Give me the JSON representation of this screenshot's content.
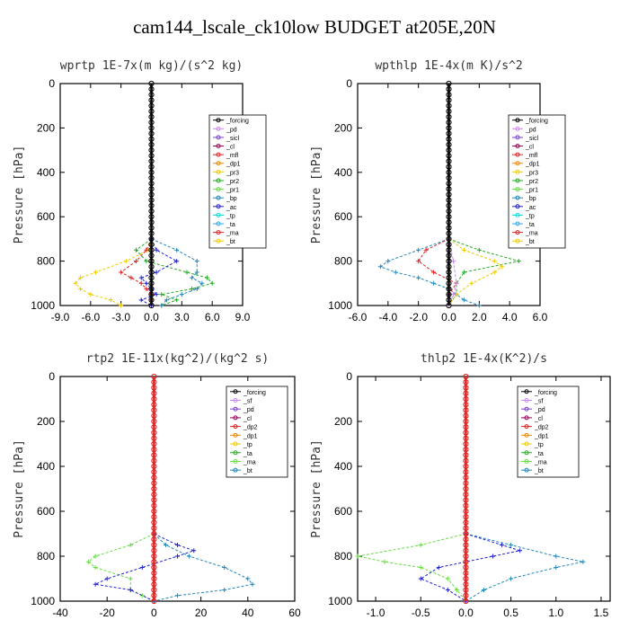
{
  "main_title": "cam144_lscale_ck10low  BUDGET at205E,20N",
  "colors": {
    "black": "#000000",
    "violet": "#cc88ee",
    "purple": "#7744cc",
    "darkmagenta": "#990055",
    "red": "#dd2222",
    "orange": "#ee8800",
    "yellow": "#eecc00",
    "green": "#22aa22",
    "lightgreen": "#66dd44",
    "steelblue": "#2288bb",
    "blue": "#2222cc",
    "cyan": "#00dddd",
    "skyblue": "#33aaee"
  },
  "chart_data": [
    {
      "type": "line",
      "title": "wprtp  1E-7x(m kg)/(s^2 kg)",
      "ylabel": "Pressure [hPa]",
      "xlim": [
        -9,
        9
      ],
      "ylim": [
        1000,
        0
      ],
      "xticks": [
        "-9.0",
        "-6.0",
        "-3.0",
        "0.0",
        "3.0",
        "6.0",
        "9.0"
      ],
      "yticks": [
        "0",
        "200",
        "400",
        "600",
        "800",
        "1000"
      ],
      "legend": [
        "_forcing",
        "_pd",
        "_sicl",
        "_cl",
        "_mfl",
        "_dp1",
        "_pr3",
        "_pr2",
        "_pr1",
        "_bp",
        "_ac",
        "_tp",
        "_ta",
        "_ma",
        "_bt"
      ],
      "series": [
        {
          "name": "_pr1",
          "color": "#eecc00",
          "pressure": [
            700,
            750,
            800,
            850,
            875,
            900,
            925,
            950,
            975,
            1000
          ],
          "values": [
            0,
            -0.3,
            -2.5,
            -5.5,
            -7.0,
            -7.5,
            -7.0,
            -6.0,
            -4.0,
            -3.0
          ]
        },
        {
          "name": "_ac",
          "color": "#22aa22",
          "pressure": [
            700,
            750,
            800,
            850,
            875,
            900,
            925,
            950,
            975,
            1000
          ],
          "values": [
            0,
            -1.5,
            -0.5,
            3.5,
            5.5,
            6.0,
            4.0,
            1.0,
            2.5,
            1.0
          ]
        },
        {
          "name": "_tp",
          "color": "#2288bb",
          "pressure": [
            700,
            750,
            800,
            850,
            875,
            900,
            925,
            950,
            975,
            1000
          ],
          "values": [
            0,
            2.5,
            4.5,
            4.5,
            4.0,
            5.0,
            4.5,
            3.0,
            1.5,
            1.0
          ]
        },
        {
          "name": "_dp1",
          "color": "#dd2222",
          "pressure": [
            700,
            750,
            800,
            850,
            875,
            900,
            925,
            950,
            975,
            1000
          ],
          "values": [
            0,
            -0.5,
            -1.5,
            -3.0,
            -2.0,
            -1.0,
            -0.5,
            0,
            0,
            0
          ]
        },
        {
          "name": "_ta",
          "color": "#2222cc",
          "pressure": [
            700,
            750,
            800,
            850,
            875,
            900,
            925,
            950,
            975,
            1000
          ],
          "values": [
            0,
            0.5,
            2.5,
            0.5,
            -1.0,
            -0.5,
            0,
            0.5,
            -1.0,
            0
          ]
        },
        {
          "name": "_forcing",
          "color": "#000000",
          "pressure": [
            0,
            1000
          ],
          "values": [
            0,
            0
          ]
        }
      ]
    },
    {
      "type": "line",
      "title": "wpthlp  1E-4x(m K)/s^2",
      "ylabel": "Pressure [hPa]",
      "xlim": [
        -6,
        6
      ],
      "ylim": [
        1000,
        0
      ],
      "xticks": [
        "-6.0",
        "-4.0",
        "-2.0",
        "0.0",
        "2.0",
        "4.0",
        "6.0"
      ],
      "yticks": [
        "0",
        "200",
        "400",
        "600",
        "800",
        "1000"
      ],
      "legend": [
        "_forcing",
        "_pd",
        "_sicl",
        "_cl",
        "_mfl",
        "_dp1",
        "_pr3",
        "_pr2",
        "_pr1",
        "_bp",
        "_ac",
        "_tp",
        "_ta",
        "_ma",
        "_bt"
      ],
      "series": [
        {
          "name": "_tp",
          "color": "#2288bb",
          "pressure": [
            700,
            750,
            800,
            825,
            850,
            875,
            900,
            925,
            950,
            975,
            1000
          ],
          "values": [
            0,
            -2.0,
            -4.0,
            -4.5,
            -3.5,
            -2.0,
            -1.0,
            0,
            0.5,
            1.0,
            2.0
          ]
        },
        {
          "name": "_ac",
          "color": "#22aa22",
          "pressure": [
            700,
            750,
            800,
            850,
            900,
            950,
            1000
          ],
          "values": [
            0,
            2.0,
            4.6,
            1.0,
            0.5,
            0.5,
            0
          ]
        },
        {
          "name": "_pr1",
          "color": "#eecc00",
          "pressure": [
            700,
            750,
            800,
            825,
            850,
            900,
            950,
            1000
          ],
          "values": [
            0,
            1.0,
            3.0,
            3.5,
            3.0,
            1.5,
            0.5,
            0
          ]
        },
        {
          "name": "_dp1",
          "color": "#dd2222",
          "pressure": [
            700,
            750,
            800,
            850,
            900,
            950,
            1000
          ],
          "values": [
            0,
            -1.5,
            -2.0,
            -1.0,
            0.5,
            0,
            0
          ]
        },
        {
          "name": "_pd",
          "color": "#cc88ee",
          "pressure": [
            700,
            800,
            900,
            950,
            1000
          ],
          "values": [
            0,
            0.3,
            0.5,
            0.3,
            0
          ]
        },
        {
          "name": "_forcing",
          "color": "#000000",
          "pressure": [
            0,
            1000
          ],
          "values": [
            0,
            0
          ]
        }
      ]
    },
    {
      "type": "line",
      "title": "rtp2  1E-11x(kg^2)/(kg^2 s)",
      "ylabel": "Pressure [hPa]",
      "xlim": [
        -40,
        60
      ],
      "ylim": [
        1000,
        0
      ],
      "xticks": [
        "-40",
        "-20",
        "0",
        "20",
        "40",
        "60"
      ],
      "yticks": [
        "0",
        "200",
        "400",
        "600",
        "800",
        "1000"
      ],
      "legend": [
        "_forcing",
        "_sf",
        "_pd",
        "_cl",
        "_dp2",
        "_dp1",
        "_tp",
        "_ta",
        "_ma",
        "_bt"
      ],
      "series": [
        {
          "name": "_dp1",
          "color": "#66dd44",
          "pressure": [
            700,
            750,
            800,
            825,
            850,
            900,
            950,
            975,
            1000
          ],
          "values": [
            0,
            -10,
            -25,
            -28,
            -25,
            -10,
            -10,
            -5,
            0
          ]
        },
        {
          "name": "_tp",
          "color": "#2288bb",
          "pressure": [
            700,
            750,
            800,
            850,
            900,
            925,
            950,
            975,
            1000
          ],
          "values": [
            0,
            5,
            15,
            30,
            40,
            42,
            30,
            10,
            0
          ]
        },
        {
          "name": "_ta",
          "color": "#2222cc",
          "pressure": [
            700,
            750,
            775,
            800,
            850,
            900,
            925,
            950,
            1000
          ],
          "values": [
            0,
            10,
            17,
            10,
            -5,
            -20,
            -25,
            -10,
            0
          ]
        },
        {
          "name": "_forcing",
          "color": "#dd2222",
          "pressure": [
            0,
            1000
          ],
          "values": [
            0,
            0
          ]
        }
      ]
    },
    {
      "type": "line",
      "title": "thlp2  1E-4x(K^2)/s",
      "ylabel": "Pressure [hPa]",
      "xlim": [
        -1.2,
        1.6
      ],
      "ylim": [
        1000,
        0
      ],
      "xticks": [
        "-1.0",
        "-0.5",
        "0.0",
        "0.5",
        "1.0",
        "1.5"
      ],
      "yticks": [
        "0",
        "200",
        "400",
        "600",
        "800",
        "1000"
      ],
      "legend": [
        "_forcing",
        "_sf",
        "_pd",
        "_cl",
        "_dp2",
        "_dp1",
        "_tp",
        "_ta",
        "_ma",
        "_bt"
      ],
      "series": [
        {
          "name": "_dp1",
          "color": "#66dd44",
          "pressure": [
            700,
            750,
            800,
            825,
            850,
            900,
            950,
            1000
          ],
          "values": [
            0,
            -0.5,
            -1.2,
            -0.9,
            -0.5,
            -0.2,
            -0.1,
            0
          ]
        },
        {
          "name": "_tp",
          "color": "#2288bb",
          "pressure": [
            700,
            750,
            800,
            825,
            850,
            900,
            950,
            1000
          ],
          "values": [
            0,
            0.5,
            1.0,
            1.3,
            1.0,
            0.5,
            0.2,
            0
          ]
        },
        {
          "name": "_ta",
          "color": "#2222cc",
          "pressure": [
            700,
            750,
            775,
            800,
            850,
            900,
            950,
            1000
          ],
          "values": [
            0,
            0.4,
            0.6,
            0.3,
            -0.3,
            -0.5,
            -0.2,
            0
          ]
        },
        {
          "name": "_forcing",
          "color": "#dd2222",
          "pressure": [
            0,
            1000
          ],
          "values": [
            0,
            0
          ]
        }
      ]
    }
  ]
}
